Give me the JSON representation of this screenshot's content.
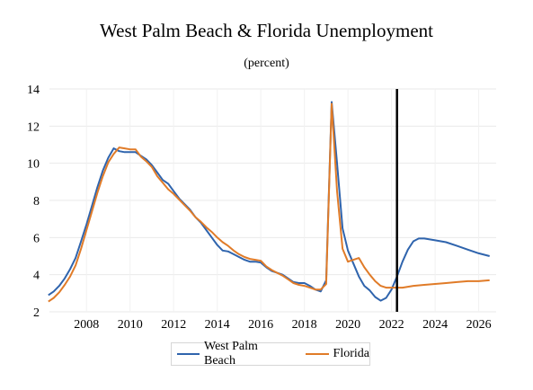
{
  "chart_data": {
    "type": "line",
    "title": "West Palm Beach & Florida Unemployment",
    "subtitle": "(percent)",
    "xlabel": "",
    "ylabel": "",
    "xlim": [
      2006.3,
      2026.8
    ],
    "ylim": [
      2,
      14
    ],
    "yticks": [
      2,
      4,
      6,
      8,
      10,
      12,
      14
    ],
    "xticks": [
      2008,
      2010,
      2012,
      2014,
      2016,
      2018,
      2020,
      2022,
      2024,
      2026
    ],
    "grid": true,
    "legend_position": "bottom",
    "vertical_marker": 2022.25,
    "series": [
      {
        "name": "West Palm Beach",
        "color": "#2f64ad",
        "points": [
          [
            2006.25,
            2.9
          ],
          [
            2006.5,
            3.1
          ],
          [
            2006.75,
            3.4
          ],
          [
            2007,
            3.8
          ],
          [
            2007.25,
            4.3
          ],
          [
            2007.5,
            4.9
          ],
          [
            2007.75,
            5.8
          ],
          [
            2008,
            6.7
          ],
          [
            2008.25,
            7.7
          ],
          [
            2008.5,
            8.7
          ],
          [
            2008.75,
            9.6
          ],
          [
            2009,
            10.3
          ],
          [
            2009.25,
            10.8
          ],
          [
            2009.5,
            10.65
          ],
          [
            2009.75,
            10.6
          ],
          [
            2010,
            10.6
          ],
          [
            2010.25,
            10.6
          ],
          [
            2010.5,
            10.4
          ],
          [
            2010.75,
            10.2
          ],
          [
            2011,
            9.9
          ],
          [
            2011.25,
            9.5
          ],
          [
            2011.5,
            9.1
          ],
          [
            2011.75,
            8.9
          ],
          [
            2012,
            8.5
          ],
          [
            2012.25,
            8.1
          ],
          [
            2012.5,
            7.8
          ],
          [
            2012.75,
            7.5
          ],
          [
            2013,
            7.1
          ],
          [
            2013.25,
            6.8
          ],
          [
            2013.5,
            6.4
          ],
          [
            2013.75,
            6.0
          ],
          [
            2014,
            5.6
          ],
          [
            2014.25,
            5.3
          ],
          [
            2014.5,
            5.25
          ],
          [
            2014.75,
            5.1
          ],
          [
            2015,
            4.95
          ],
          [
            2015.25,
            4.8
          ],
          [
            2015.5,
            4.7
          ],
          [
            2015.75,
            4.7
          ],
          [
            2016,
            4.65
          ],
          [
            2016.25,
            4.4
          ],
          [
            2016.5,
            4.2
          ],
          [
            2016.75,
            4.1
          ],
          [
            2017,
            4.0
          ],
          [
            2017.25,
            3.8
          ],
          [
            2017.5,
            3.6
          ],
          [
            2017.75,
            3.55
          ],
          [
            2018,
            3.55
          ],
          [
            2018.25,
            3.4
          ],
          [
            2018.5,
            3.2
          ],
          [
            2018.75,
            3.1
          ],
          [
            2019,
            3.7
          ],
          [
            2019.25,
            13.3
          ],
          [
            2019.5,
            10.0
          ],
          [
            2019.75,
            6.5
          ],
          [
            2020,
            5.3
          ],
          [
            2020.25,
            4.6
          ],
          [
            2020.5,
            3.9
          ],
          [
            2020.75,
            3.4
          ],
          [
            2021,
            3.15
          ],
          [
            2021.25,
            2.8
          ],
          [
            2021.5,
            2.6
          ],
          [
            2021.75,
            2.75
          ],
          [
            2022,
            3.2
          ],
          [
            2022.25,
            3.9
          ],
          [
            2022.5,
            4.7
          ],
          [
            2022.75,
            5.35
          ],
          [
            2023,
            5.8
          ],
          [
            2023.25,
            5.95
          ],
          [
            2023.5,
            5.95
          ],
          [
            2023.75,
            5.9
          ],
          [
            2024,
            5.85
          ],
          [
            2024.5,
            5.75
          ],
          [
            2025,
            5.55
          ],
          [
            2025.5,
            5.35
          ],
          [
            2026,
            5.15
          ],
          [
            2026.5,
            5.0
          ]
        ]
      },
      {
        "name": "Florida",
        "color": "#e07b28",
        "points": [
          [
            2006.25,
            2.55
          ],
          [
            2006.5,
            2.75
          ],
          [
            2006.75,
            3.05
          ],
          [
            2007,
            3.45
          ],
          [
            2007.25,
            3.9
          ],
          [
            2007.5,
            4.5
          ],
          [
            2007.75,
            5.4
          ],
          [
            2008,
            6.4
          ],
          [
            2008.25,
            7.4
          ],
          [
            2008.5,
            8.4
          ],
          [
            2008.75,
            9.3
          ],
          [
            2009,
            10.05
          ],
          [
            2009.25,
            10.5
          ],
          [
            2009.5,
            10.85
          ],
          [
            2009.75,
            10.8
          ],
          [
            2010,
            10.75
          ],
          [
            2010.25,
            10.75
          ],
          [
            2010.5,
            10.35
          ],
          [
            2010.75,
            10.1
          ],
          [
            2011,
            9.8
          ],
          [
            2011.25,
            9.3
          ],
          [
            2011.5,
            8.95
          ],
          [
            2011.75,
            8.6
          ],
          [
            2012,
            8.35
          ],
          [
            2012.25,
            8.05
          ],
          [
            2012.5,
            7.75
          ],
          [
            2012.75,
            7.45
          ],
          [
            2013,
            7.1
          ],
          [
            2013.25,
            6.85
          ],
          [
            2013.5,
            6.55
          ],
          [
            2013.75,
            6.3
          ],
          [
            2014,
            6.0
          ],
          [
            2014.25,
            5.75
          ],
          [
            2014.5,
            5.55
          ],
          [
            2014.75,
            5.3
          ],
          [
            2015,
            5.1
          ],
          [
            2015.25,
            4.95
          ],
          [
            2015.5,
            4.85
          ],
          [
            2015.75,
            4.8
          ],
          [
            2016,
            4.75
          ],
          [
            2016.25,
            4.45
          ],
          [
            2016.5,
            4.25
          ],
          [
            2016.75,
            4.1
          ],
          [
            2017,
            3.95
          ],
          [
            2017.25,
            3.75
          ],
          [
            2017.5,
            3.55
          ],
          [
            2017.75,
            3.45
          ],
          [
            2018,
            3.4
          ],
          [
            2018.25,
            3.3
          ],
          [
            2018.5,
            3.2
          ],
          [
            2018.75,
            3.2
          ],
          [
            2019,
            3.5
          ],
          [
            2019.25,
            13.2
          ],
          [
            2019.5,
            8.5
          ],
          [
            2019.75,
            5.4
          ],
          [
            2020,
            4.7
          ],
          [
            2020.25,
            4.8
          ],
          [
            2020.5,
            4.9
          ],
          [
            2020.75,
            4.4
          ],
          [
            2021,
            4.0
          ],
          [
            2021.25,
            3.65
          ],
          [
            2021.5,
            3.4
          ],
          [
            2021.75,
            3.3
          ],
          [
            2022,
            3.3
          ],
          [
            2022.5,
            3.3
          ],
          [
            2023,
            3.4
          ],
          [
            2023.5,
            3.45
          ],
          [
            2024,
            3.5
          ],
          [
            2024.5,
            3.55
          ],
          [
            2025,
            3.6
          ],
          [
            2025.5,
            3.65
          ],
          [
            2026,
            3.65
          ],
          [
            2026.5,
            3.7
          ]
        ]
      }
    ]
  }
}
